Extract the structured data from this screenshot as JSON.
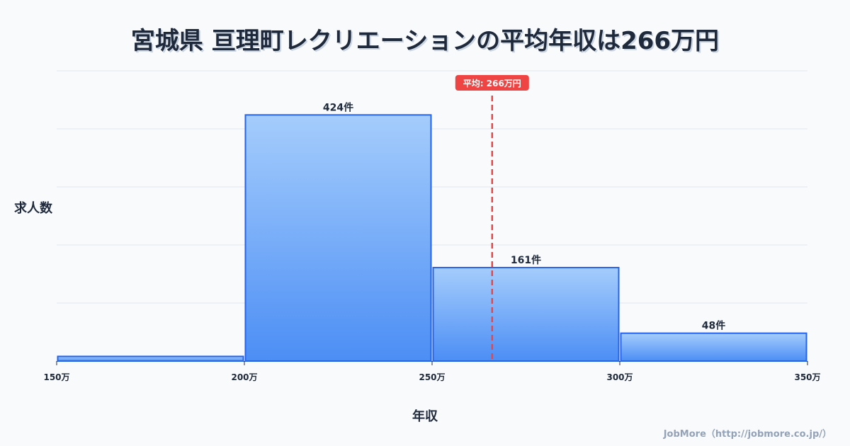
{
  "chart_data": {
    "type": "bar",
    "title": "宮城県 亘理町レクリエーションの平均年収は266万円",
    "xlabel": "年収",
    "ylabel": "求人数",
    "bins": [
      [
        150,
        200
      ],
      [
        200,
        250
      ],
      [
        250,
        300
      ],
      [
        300,
        350
      ]
    ],
    "values": [
      8,
      424,
      161,
      48
    ],
    "data_labels": [
      "",
      "424件",
      "161件",
      "48件"
    ],
    "xtick_labels": [
      "150万",
      "200万",
      "250万",
      "300万",
      "350万"
    ],
    "xlim": [
      150,
      350
    ],
    "ylim": [
      0,
      500
    ],
    "grid": true,
    "mean": {
      "value": 266,
      "label": "平均: 266万円"
    },
    "colors": {
      "bar_top": "#a5cdfc",
      "bar_bottom": "#4c8ef5",
      "bar_stroke": "#2563eb",
      "mean": "#ef4444"
    }
  },
  "credit": "JobMore（http://jobmore.co.jp/）"
}
